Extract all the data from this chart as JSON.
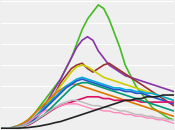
{
  "background": "#efefef",
  "grid_color": "#ffffff",
  "series": [
    {
      "color": "#44bb22",
      "lw": 1.2,
      "points": [
        0,
        0.1,
        0.3,
        0.8,
        1.5,
        2.5,
        4,
        6,
        8,
        10,
        12,
        14,
        17,
        20,
        24,
        28,
        31,
        33,
        35,
        34,
        31,
        27,
        23,
        18,
        15,
        12,
        10,
        8,
        6,
        5,
        4,
        3,
        2.5
      ]
    },
    {
      "color": "#8833aa",
      "lw": 1.2,
      "points": [
        0,
        0.1,
        0.2,
        0.5,
        1,
        2,
        3,
        4.5,
        6.5,
        9,
        11.5,
        14,
        17,
        20,
        23,
        25,
        26,
        25,
        22,
        20,
        18,
        17,
        16,
        15,
        14.5,
        14,
        13.5,
        13,
        12.5,
        12,
        11.5,
        11,
        10.5
      ]
    },
    {
      "color": "#993333",
      "lw": 1.2,
      "points": [
        0,
        0.1,
        0.2,
        0.4,
        0.8,
        1.5,
        2.5,
        4,
        5.5,
        7.5,
        10,
        13,
        15,
        17,
        18,
        18.5,
        17,
        16,
        17,
        18,
        18.5,
        17.5,
        16.5,
        15.5,
        14.5,
        13.5,
        12.5,
        11.5,
        10.5,
        9.5,
        8.5,
        7.5,
        6.5
      ]
    },
    {
      "color": "#cccc00",
      "lw": 1.2,
      "points": [
        0,
        0.1,
        0.2,
        0.5,
        1,
        1.8,
        3,
        4.5,
        6,
        8,
        10,
        12,
        14,
        16,
        17.5,
        18,
        17.5,
        16.5,
        15.5,
        14.5,
        14,
        13.5,
        13,
        12.5,
        12,
        11.5,
        11,
        10.5,
        10,
        9.5,
        9,
        8.5,
        8
      ]
    },
    {
      "color": "#dd7700",
      "lw": 1.2,
      "points": [
        0,
        0.1,
        0.3,
        0.8,
        1.5,
        2.5,
        4,
        5.5,
        7,
        8.5,
        10,
        11,
        12,
        12.5,
        12.5,
        12,
        11.5,
        11,
        10.5,
        10,
        9.5,
        9,
        8.5,
        8,
        7.5,
        7,
        6.5,
        6,
        5.5,
        5,
        4.5,
        4,
        3.5
      ]
    },
    {
      "color": "#00aadd",
      "lw": 1.2,
      "points": [
        0,
        0.1,
        0.2,
        0.5,
        1,
        1.8,
        3,
        4.5,
        6,
        7.5,
        9,
        10.5,
        12,
        13,
        14,
        14.5,
        14,
        13.5,
        13,
        12.5,
        12,
        11.5,
        11.5,
        11,
        11,
        10.5,
        10.5,
        10,
        10,
        9.5,
        9,
        8.5,
        8
      ]
    },
    {
      "color": "#2255cc",
      "lw": 1.2,
      "points": [
        0,
        0.1,
        0.2,
        0.4,
        0.8,
        1.5,
        2.5,
        4,
        5.5,
        7,
        8.5,
        10,
        11.5,
        12.5,
        13.5,
        14,
        13.5,
        13,
        12.5,
        12,
        11.5,
        11,
        11,
        10.5,
        10.5,
        10,
        10,
        9.5,
        9,
        8.5,
        8,
        7.5,
        7
      ]
    },
    {
      "color": "#dd1166",
      "lw": 1.2,
      "points": [
        0,
        0.1,
        0.1,
        0.3,
        0.6,
        1,
        1.8,
        2.8,
        3.8,
        4.8,
        5.8,
        6.5,
        7,
        7.5,
        8,
        8.5,
        9,
        9,
        9,
        8.5,
        8.5,
        8,
        8,
        8,
        8,
        8,
        7.5,
        7.5,
        7.5,
        7.5,
        7.5,
        7.5,
        7.5
      ]
    },
    {
      "color": "#ff88bb",
      "lw": 1.0,
      "points": [
        0,
        0.1,
        0.2,
        0.5,
        1,
        1.8,
        3,
        4,
        5,
        5.5,
        6,
        6.5,
        7,
        7,
        7,
        6.5,
        6,
        5.5,
        5.5,
        5,
        5,
        4.5,
        4.5,
        4,
        4,
        3.5,
        3.5,
        3,
        3,
        2.5,
        2.5,
        2,
        1.5
      ]
    },
    {
      "color": "#009977",
      "lw": 1.2,
      "points": [
        0,
        0.1,
        0.2,
        0.4,
        0.7,
        1.2,
        2,
        3,
        4,
        5.5,
        7,
        8.5,
        10,
        11.5,
        12.5,
        13,
        13,
        12.5,
        12,
        11.5,
        11,
        10.5,
        10,
        9.5,
        9,
        8.5,
        8,
        7.5,
        7,
        6.5,
        6,
        5.5,
        5
      ]
    },
    {
      "color": "#bbbbbb",
      "lw": 1.0,
      "points": [
        0,
        0.1,
        0.2,
        0.4,
        0.7,
        1.2,
        2,
        3,
        4,
        5,
        6,
        7,
        7.5,
        8,
        8,
        7.5,
        7,
        6.5,
        6.5,
        6,
        6,
        5.5,
        5,
        5,
        4.5,
        4,
        4,
        3.5,
        3.5,
        3,
        3,
        2.5,
        2.5
      ]
    },
    {
      "color": "#222222",
      "lw": 1.2,
      "points": [
        0,
        0,
        0.1,
        0.1,
        0.2,
        0.3,
        0.5,
        0.7,
        1,
        1.3,
        1.7,
        2,
        2.5,
        3,
        3.5,
        4,
        4.5,
        5,
        5.5,
        6,
        6.5,
        7,
        7.5,
        8,
        8,
        8.5,
        8.5,
        9,
        9,
        9,
        9.5,
        9.5,
        9.5
      ]
    }
  ],
  "xlim": [
    0,
    32
  ],
  "ylim": [
    0,
    36
  ],
  "n_gridlines": 7
}
